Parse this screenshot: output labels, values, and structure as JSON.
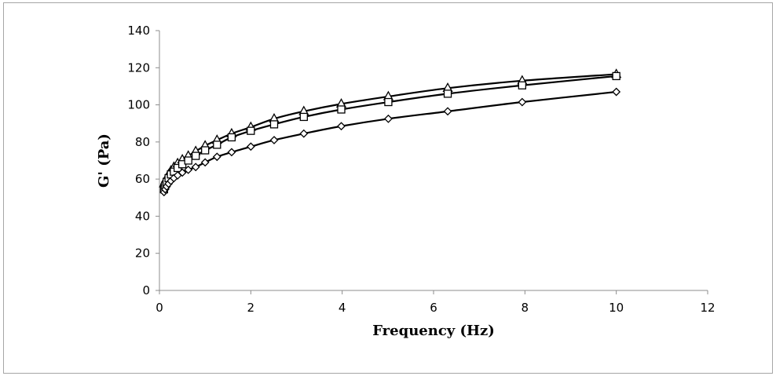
{
  "chart_data": {
    "type": "scatter",
    "title": "",
    "xlabel": "Frequency (Hz)",
    "ylabel": "G' (Pa)",
    "xlim": [
      0,
      12
    ],
    "ylim": [
      0,
      140
    ],
    "x_ticks": [
      0,
      2,
      4,
      6,
      8,
      10,
      12
    ],
    "y_ticks": [
      0,
      20,
      40,
      60,
      80,
      100,
      120,
      140
    ],
    "x_tick_labels": [
      "0",
      "2",
      "4",
      "6",
      "8",
      "10",
      "12"
    ],
    "y_tick_labels": [
      "0",
      "20",
      "40",
      "60",
      "80",
      "100",
      "120",
      "140"
    ],
    "grid": false,
    "legend": "none",
    "x": [
      0.1,
      0.126,
      0.158,
      0.2,
      0.251,
      0.316,
      0.398,
      0.501,
      0.631,
      0.794,
      1.0,
      1.26,
      1.58,
      2.0,
      2.51,
      3.16,
      3.98,
      5.01,
      6.31,
      7.94,
      10.0
    ],
    "series": [
      {
        "marker": "triangle",
        "values": [
          57.5,
          59.0,
          60.5,
          62.5,
          64.5,
          66.5,
          68.5,
          70.5,
          72.5,
          75.0,
          78.0,
          81.0,
          84.5,
          88.0,
          92.5,
          96.5,
          100.5,
          104.5,
          109.0,
          113.0,
          116.5
        ]
      },
      {
        "marker": "square",
        "values": [
          54.5,
          56.5,
          58.5,
          60.5,
          62.5,
          64.0,
          66.0,
          68.0,
          70.0,
          72.5,
          75.5,
          78.5,
          82.5,
          86.0,
          89.5,
          93.5,
          97.5,
          101.5,
          106.0,
          110.5,
          115.5
        ]
      },
      {
        "marker": "diamond",
        "values": [
          53.0,
          54.5,
          56.0,
          57.5,
          59.0,
          60.5,
          62.0,
          63.5,
          65.0,
          66.5,
          69.0,
          72.0,
          74.5,
          77.5,
          81.0,
          84.5,
          88.5,
          92.5,
          96.5,
          101.5,
          107.0
        ]
      }
    ]
  }
}
